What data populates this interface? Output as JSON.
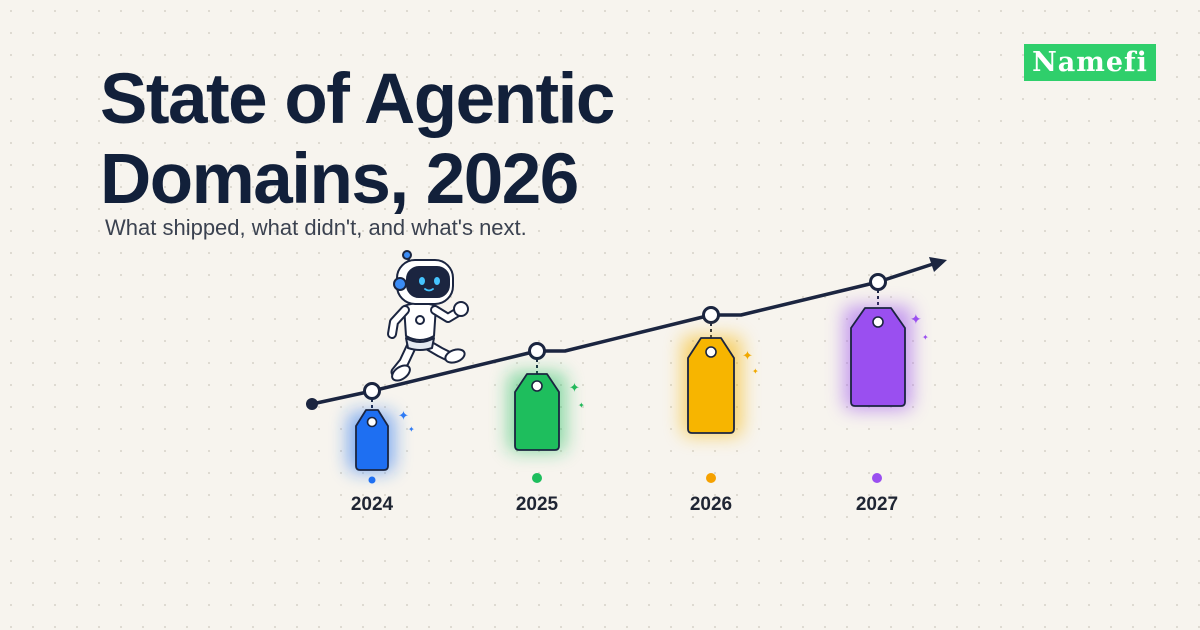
{
  "title_line1": "State of Agentic",
  "title_line2": "Domains, 2026",
  "subtitle": "What shipped, what didn't, and what's next.",
  "brand": "Namefi",
  "colors": {
    "background": "#f7f4ee",
    "ink": "#12203a",
    "brand": "#2fcf6b",
    "tag_2024": "#1e6ff2",
    "tag_2025": "#1ebe5d",
    "tag_2026": "#f7b500",
    "tag_2027": "#9a4ff0"
  },
  "timeline": {
    "years": [
      "2024",
      "2025",
      "2026",
      "2027"
    ],
    "tag_colors": [
      "#1e6ff2",
      "#1ebe5d",
      "#f7b500",
      "#9a4ff0"
    ],
    "mascot": "robot-icon"
  }
}
